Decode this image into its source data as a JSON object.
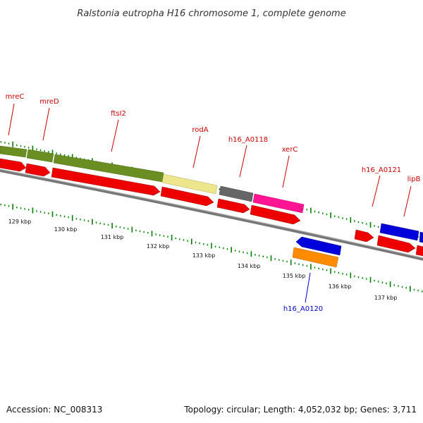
{
  "title": "Ralstonia eutropha H16 chromosome 1, complete genome",
  "footer": {
    "accession": "Accession: NC_008313",
    "summary": "Topology: circular; Length: 4,052,032 bp; Genes: 3,711"
  },
  "colors": {
    "red": "#ee0000",
    "olive": "#6b8e23",
    "khaki": "#eee68c",
    "gray": "#666666",
    "magenta": "#ff1493",
    "blue": "#0000dd",
    "orange": "#ff8c00",
    "label_red": "#cc0000",
    "label_blue": "#0000cc",
    "tick_green": "#008000"
  },
  "ticks": [
    {
      "label": "129 kbp"
    },
    {
      "label": "130 kbp"
    },
    {
      "label": "131 kbp"
    },
    {
      "label": "132 kbp"
    },
    {
      "label": "133 kbp"
    },
    {
      "label": "134 kbp"
    },
    {
      "label": "135 kbp"
    },
    {
      "label": "136 kbp"
    },
    {
      "label": "137 kbp"
    }
  ],
  "gene_labels": [
    {
      "name": "mreC",
      "strand": "forward"
    },
    {
      "name": "mreD",
      "strand": "forward"
    },
    {
      "name": "ftsI2",
      "strand": "forward"
    },
    {
      "name": "rodA",
      "strand": "forward"
    },
    {
      "name": "h16_A0118",
      "strand": "forward"
    },
    {
      "name": "xerC",
      "strand": "forward"
    },
    {
      "name": "h16_A0121",
      "strand": "forward"
    },
    {
      "name": "lipB",
      "strand": "forward"
    },
    {
      "name": "h16_A0120",
      "strand": "reverse"
    }
  ]
}
